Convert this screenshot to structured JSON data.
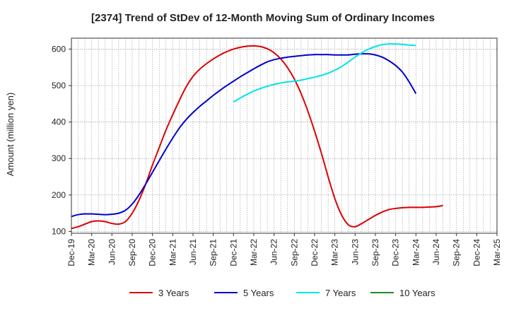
{
  "chart_data": {
    "type": "line",
    "title": "[2374]  Trend of StDev of 12-Month Moving Sum of Ordinary Incomes",
    "ylabel": "Amount (million yen)",
    "xlabel": "",
    "ylim": [
      95,
      630
    ],
    "yticks": [
      100,
      200,
      300,
      400,
      500,
      600
    ],
    "x_start": "Dec-19",
    "x_ticks": [
      "Dec-19",
      "Mar-20",
      "Jun-20",
      "Sep-20",
      "Dec-20",
      "Mar-21",
      "Jun-21",
      "Sep-21",
      "Dec-21",
      "Mar-22",
      "Jun-22",
      "Sep-22",
      "Dec-22",
      "Mar-23",
      "Jun-23",
      "Sep-23",
      "Dec-23",
      "Mar-24",
      "Jun-24",
      "Sep-24",
      "Dec-24",
      "Mar-25"
    ],
    "grid": true,
    "legend_position": "bottom",
    "series": [
      {
        "name": "3 Years",
        "color": "#dd0000",
        "points": [
          [
            "Dec-19",
            108
          ],
          [
            "Jan-20",
            113
          ],
          [
            "Feb-20",
            120
          ],
          [
            "Mar-20",
            127
          ],
          [
            "Apr-20",
            129
          ],
          [
            "May-20",
            127
          ],
          [
            "Jun-20",
            122
          ],
          [
            "Jul-20",
            120
          ],
          [
            "Aug-20",
            127
          ],
          [
            "Sep-20",
            150
          ],
          [
            "Oct-20",
            185
          ],
          [
            "Nov-20",
            230
          ],
          [
            "Dec-20",
            282
          ],
          [
            "Jan-21",
            330
          ],
          [
            "Feb-21",
            378
          ],
          [
            "Mar-21",
            420
          ],
          [
            "Apr-21",
            460
          ],
          [
            "May-21",
            497
          ],
          [
            "Jun-21",
            525
          ],
          [
            "Jul-21",
            545
          ],
          [
            "Aug-21",
            560
          ],
          [
            "Sep-21",
            573
          ],
          [
            "Oct-21",
            584
          ],
          [
            "Nov-21",
            593
          ],
          [
            "Dec-21",
            600
          ],
          [
            "Jan-22",
            605
          ],
          [
            "Feb-22",
            608
          ],
          [
            "Mar-22",
            609
          ],
          [
            "Apr-22",
            607
          ],
          [
            "May-22",
            601
          ],
          [
            "Jun-22",
            590
          ],
          [
            "Jul-22",
            573
          ],
          [
            "Aug-22",
            549
          ],
          [
            "Sep-22",
            518
          ],
          [
            "Oct-22",
            478
          ],
          [
            "Nov-22",
            430
          ],
          [
            "Dec-22",
            375
          ],
          [
            "Jan-23",
            315
          ],
          [
            "Feb-23",
            250
          ],
          [
            "Mar-23",
            190
          ],
          [
            "Apr-23",
            145
          ],
          [
            "May-23",
            118
          ],
          [
            "Jun-23",
            113
          ],
          [
            "Jul-23",
            122
          ],
          [
            "Aug-23",
            133
          ],
          [
            "Sep-23",
            144
          ],
          [
            "Oct-23",
            153
          ],
          [
            "Nov-23",
            160
          ],
          [
            "Dec-23",
            163
          ],
          [
            "Jan-24",
            165
          ],
          [
            "Feb-24",
            166
          ],
          [
            "Mar-24",
            166
          ],
          [
            "Apr-24",
            166
          ],
          [
            "May-24",
            167
          ],
          [
            "Jun-24",
            168
          ],
          [
            "Jul-24",
            171
          ]
        ]
      },
      {
        "name": "5 Years",
        "color": "#0000cc",
        "points": [
          [
            "Dec-19",
            141
          ],
          [
            "Jan-20",
            146
          ],
          [
            "Feb-20",
            148
          ],
          [
            "Mar-20",
            148
          ],
          [
            "Apr-20",
            147
          ],
          [
            "May-20",
            146
          ],
          [
            "Jun-20",
            147
          ],
          [
            "Jul-20",
            150
          ],
          [
            "Aug-20",
            158
          ],
          [
            "Sep-20",
            175
          ],
          [
            "Oct-20",
            200
          ],
          [
            "Nov-20",
            230
          ],
          [
            "Dec-20",
            262
          ],
          [
            "Jan-21",
            294
          ],
          [
            "Feb-21",
            326
          ],
          [
            "Mar-21",
            356
          ],
          [
            "Apr-21",
            384
          ],
          [
            "May-21",
            407
          ],
          [
            "Jun-21",
            426
          ],
          [
            "Jul-21",
            443
          ],
          [
            "Aug-21",
            458
          ],
          [
            "Sep-21",
            473
          ],
          [
            "Oct-21",
            487
          ],
          [
            "Nov-21",
            500
          ],
          [
            "Dec-21",
            512
          ],
          [
            "Jan-22",
            524
          ],
          [
            "Feb-22",
            535
          ],
          [
            "Mar-22",
            546
          ],
          [
            "Apr-22",
            556
          ],
          [
            "May-22",
            565
          ],
          [
            "Jun-22",
            571
          ],
          [
            "Jul-22",
            575
          ],
          [
            "Aug-22",
            578
          ],
          [
            "Sep-22",
            580
          ],
          [
            "Oct-22",
            582
          ],
          [
            "Nov-22",
            584
          ],
          [
            "Dec-22",
            585
          ],
          [
            "Jan-23",
            585
          ],
          [
            "Feb-23",
            585
          ],
          [
            "Mar-23",
            584
          ],
          [
            "Apr-23",
            584
          ],
          [
            "May-23",
            584
          ],
          [
            "Jun-23",
            586
          ],
          [
            "Jul-23",
            587
          ],
          [
            "Aug-23",
            587
          ],
          [
            "Sep-23",
            584
          ],
          [
            "Oct-23",
            578
          ],
          [
            "Nov-23",
            568
          ],
          [
            "Dec-23",
            555
          ],
          [
            "Jan-24",
            537
          ],
          [
            "Feb-24",
            510
          ],
          [
            "Mar-24",
            478
          ]
        ]
      },
      {
        "name": "7 Years",
        "color": "#00e5e5",
        "points": [
          [
            "Dec-21",
            455
          ],
          [
            "Jan-22",
            466
          ],
          [
            "Feb-22",
            476
          ],
          [
            "Mar-22",
            485
          ],
          [
            "Apr-22",
            492
          ],
          [
            "May-22",
            498
          ],
          [
            "Jun-22",
            503
          ],
          [
            "Jul-22",
            507
          ],
          [
            "Aug-22",
            510
          ],
          [
            "Sep-22",
            512
          ],
          [
            "Oct-22",
            515
          ],
          [
            "Nov-22",
            519
          ],
          [
            "Dec-22",
            523
          ],
          [
            "Jan-23",
            528
          ],
          [
            "Feb-23",
            534
          ],
          [
            "Mar-23",
            542
          ],
          [
            "Apr-23",
            552
          ],
          [
            "May-23",
            565
          ],
          [
            "Jun-23",
            578
          ],
          [
            "Jul-23",
            590
          ],
          [
            "Aug-23",
            600
          ],
          [
            "Sep-23",
            607
          ],
          [
            "Oct-23",
            612
          ],
          [
            "Nov-23",
            614
          ],
          [
            "Dec-23",
            614
          ],
          [
            "Jan-24",
            613
          ],
          [
            "Feb-24",
            611
          ],
          [
            "Mar-24",
            610
          ]
        ]
      },
      {
        "name": "10 Years",
        "color": "#228b22",
        "points": []
      }
    ]
  }
}
